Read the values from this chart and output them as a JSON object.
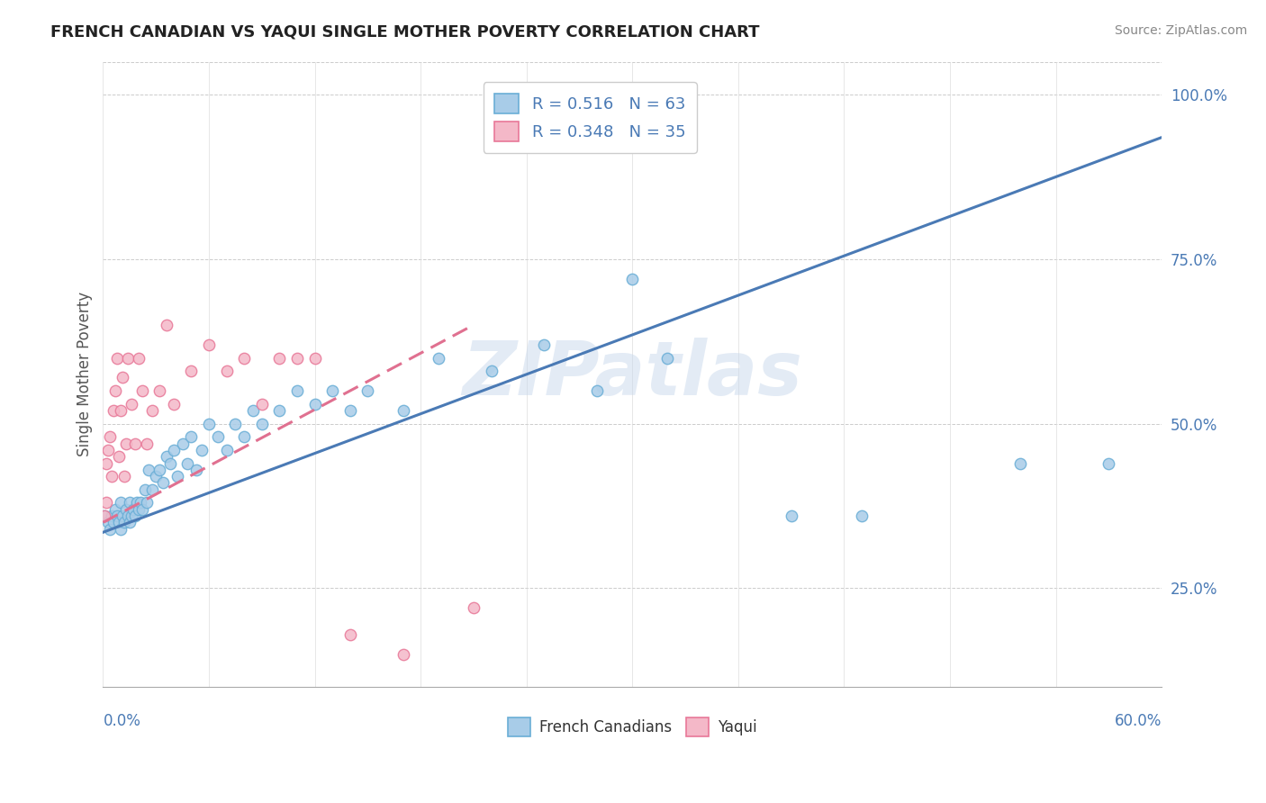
{
  "title": "FRENCH CANADIAN VS YAQUI SINGLE MOTHER POVERTY CORRELATION CHART",
  "source": "Source: ZipAtlas.com",
  "ylabel": "Single Mother Poverty",
  "x_min": 0.0,
  "x_max": 0.6,
  "y_min": 0.1,
  "y_max": 1.05,
  "yticks": [
    0.25,
    0.5,
    0.75,
    1.0
  ],
  "ytick_labels": [
    "25.0%",
    "50.0%",
    "75.0%",
    "100.0%"
  ],
  "watermark": "ZIPatlas",
  "legend_blue_r": "R = 0.516",
  "legend_blue_n": "N = 63",
  "legend_pink_r": "R = 0.348",
  "legend_pink_n": "N = 35",
  "legend_blue_label": "French Canadians",
  "legend_pink_label": "Yaqui",
  "blue_scatter_color": "#a8cce8",
  "blue_scatter_edge": "#6aaed6",
  "pink_scatter_color": "#f4b8c8",
  "pink_scatter_edge": "#e87898",
  "blue_line_color": "#4a7ab5",
  "pink_line_color": "#e07090",
  "blue_legend_color": "#a8cce8",
  "pink_legend_color": "#f4b8c8",
  "fc_x": [
    0.001,
    0.003,
    0.004,
    0.005,
    0.006,
    0.007,
    0.008,
    0.009,
    0.01,
    0.01,
    0.011,
    0.012,
    0.013,
    0.014,
    0.015,
    0.015,
    0.016,
    0.017,
    0.018,
    0.019,
    0.02,
    0.021,
    0.022,
    0.024,
    0.025,
    0.026,
    0.028,
    0.03,
    0.032,
    0.034,
    0.036,
    0.038,
    0.04,
    0.042,
    0.045,
    0.048,
    0.05,
    0.053,
    0.056,
    0.06,
    0.065,
    0.07,
    0.075,
    0.08,
    0.085,
    0.09,
    0.1,
    0.11,
    0.12,
    0.13,
    0.14,
    0.15,
    0.17,
    0.19,
    0.22,
    0.25,
    0.28,
    0.3,
    0.32,
    0.39,
    0.43,
    0.52,
    0.57
  ],
  "fc_y": [
    0.36,
    0.35,
    0.34,
    0.36,
    0.35,
    0.37,
    0.36,
    0.35,
    0.34,
    0.38,
    0.36,
    0.35,
    0.37,
    0.36,
    0.35,
    0.38,
    0.36,
    0.37,
    0.36,
    0.38,
    0.37,
    0.38,
    0.37,
    0.4,
    0.38,
    0.43,
    0.4,
    0.42,
    0.43,
    0.41,
    0.45,
    0.44,
    0.46,
    0.42,
    0.47,
    0.44,
    0.48,
    0.43,
    0.46,
    0.5,
    0.48,
    0.46,
    0.5,
    0.48,
    0.52,
    0.5,
    0.52,
    0.55,
    0.53,
    0.55,
    0.52,
    0.55,
    0.52,
    0.6,
    0.58,
    0.62,
    0.55,
    0.72,
    0.6,
    0.36,
    0.36,
    0.44,
    0.44
  ],
  "yq_x": [
    0.001,
    0.002,
    0.002,
    0.003,
    0.004,
    0.005,
    0.006,
    0.007,
    0.008,
    0.009,
    0.01,
    0.011,
    0.012,
    0.013,
    0.014,
    0.016,
    0.018,
    0.02,
    0.022,
    0.025,
    0.028,
    0.032,
    0.036,
    0.04,
    0.05,
    0.06,
    0.07,
    0.08,
    0.09,
    0.1,
    0.11,
    0.12,
    0.14,
    0.17,
    0.21
  ],
  "yq_y": [
    0.36,
    0.38,
    0.44,
    0.46,
    0.48,
    0.42,
    0.52,
    0.55,
    0.6,
    0.45,
    0.52,
    0.57,
    0.42,
    0.47,
    0.6,
    0.53,
    0.47,
    0.6,
    0.55,
    0.47,
    0.52,
    0.55,
    0.65,
    0.53,
    0.58,
    0.62,
    0.58,
    0.6,
    0.53,
    0.6,
    0.6,
    0.6,
    0.18,
    0.15,
    0.22
  ],
  "fc_trend_x": [
    0.0,
    0.6
  ],
  "fc_trend_y": [
    0.335,
    0.935
  ],
  "yq_trend_x0": 0.0,
  "yq_trend_x1": 0.21,
  "yq_trend_y0": 0.35,
  "yq_trend_y1": 0.65
}
